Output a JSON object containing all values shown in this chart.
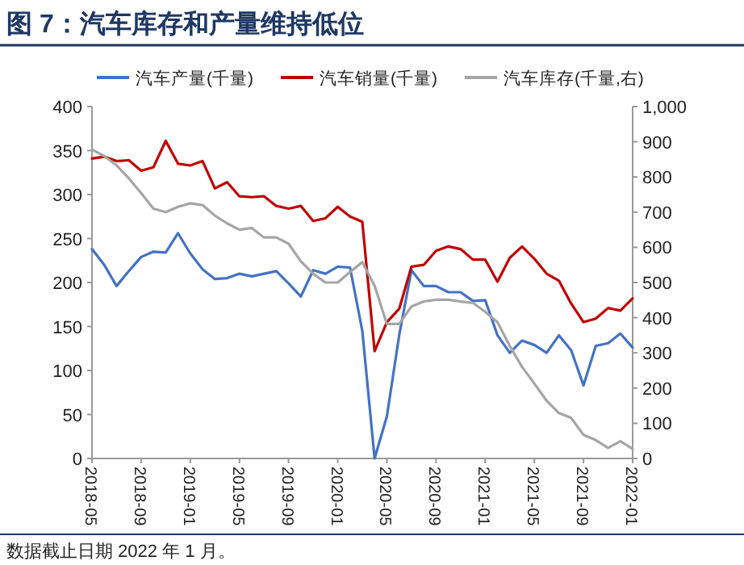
{
  "chart_data": {
    "type": "line",
    "title": "图 7：汽车库存和产量维持低位",
    "x": [
      "2018-05",
      "2018-06",
      "2018-07",
      "2018-08",
      "2018-09",
      "2018-10",
      "2018-11",
      "2018-12",
      "2019-01",
      "2019-02",
      "2019-03",
      "2019-04",
      "2019-05",
      "2019-06",
      "2019-07",
      "2019-08",
      "2019-09",
      "2019-10",
      "2019-11",
      "2019-12",
      "2020-01",
      "2020-02",
      "2020-03",
      "2020-04",
      "2020-05",
      "2020-06",
      "2020-07",
      "2020-08",
      "2020-09",
      "2020-10",
      "2020-11",
      "2020-12",
      "2021-01",
      "2021-02",
      "2021-03",
      "2021-04",
      "2021-05",
      "2021-06",
      "2021-07",
      "2021-08",
      "2021-09",
      "2021-10",
      "2021-11",
      "2021-12",
      "2022-01"
    ],
    "series": [
      {
        "name": "汽车产量(千量)",
        "color": "#4472c4",
        "values": [
          238,
          220,
          196,
          213,
          229,
          235,
          234,
          256,
          233,
          215,
          204,
          205,
          210,
          207,
          210,
          213,
          199,
          184,
          214,
          210,
          218,
          217,
          145,
          0,
          48,
          140,
          214,
          196,
          196,
          189,
          189,
          179,
          180,
          140,
          120,
          134,
          129,
          120,
          140,
          123,
          83,
          128,
          131,
          142,
          126
        ]
      },
      {
        "name": "汽车销量(千量)",
        "color": "#c00000",
        "values": [
          341,
          343,
          338,
          339,
          327,
          331,
          361,
          335,
          333,
          338,
          307,
          314,
          298,
          297,
          298,
          287,
          284,
          287,
          270,
          273,
          286,
          275,
          269,
          122,
          155,
          170,
          218,
          220,
          236,
          241,
          238,
          226,
          226,
          201,
          228,
          241,
          227,
          210,
          202,
          176,
          155,
          159,
          171,
          168,
          182
        ]
      },
      {
        "name": "汽车库存(千量,右)",
        "color": "#a5a5a5",
        "axis": "y2",
        "values": [
          878,
          859,
          833,
          796,
          754,
          710,
          700,
          715,
          725,
          720,
          690,
          668,
          650,
          655,
          628,
          628,
          610,
          560,
          525,
          500,
          500,
          530,
          558,
          491,
          382,
          382,
          432,
          446,
          451,
          451,
          446,
          442,
          417,
          387,
          320,
          260,
          213,
          164,
          129,
          115,
          67,
          52,
          30,
          49,
          27
        ]
      }
    ],
    "xlim": [
      "2018-05",
      "2022-01"
    ],
    "xticks": [
      "2018-05",
      "2018-09",
      "2019-01",
      "2019-05",
      "2019-09",
      "2020-01",
      "2020-05",
      "2020-09",
      "2021-01",
      "2021-05",
      "2021-09",
      "2022-01"
    ],
    "ylim": [
      0,
      400
    ],
    "yticks": [
      0,
      50,
      100,
      150,
      200,
      250,
      300,
      350,
      400
    ],
    "y2lim": [
      0,
      1000
    ],
    "y2ticks": [
      0,
      100,
      200,
      300,
      400,
      500,
      600,
      700,
      800,
      900,
      {
        "value": 1000,
        "label": "1,000"
      }
    ],
    "legend": "top",
    "grid": false,
    "marker": "none",
    "line_style": "solid",
    "annotations": [
      "数据截止日期 2022 年 1 月。"
    ]
  }
}
